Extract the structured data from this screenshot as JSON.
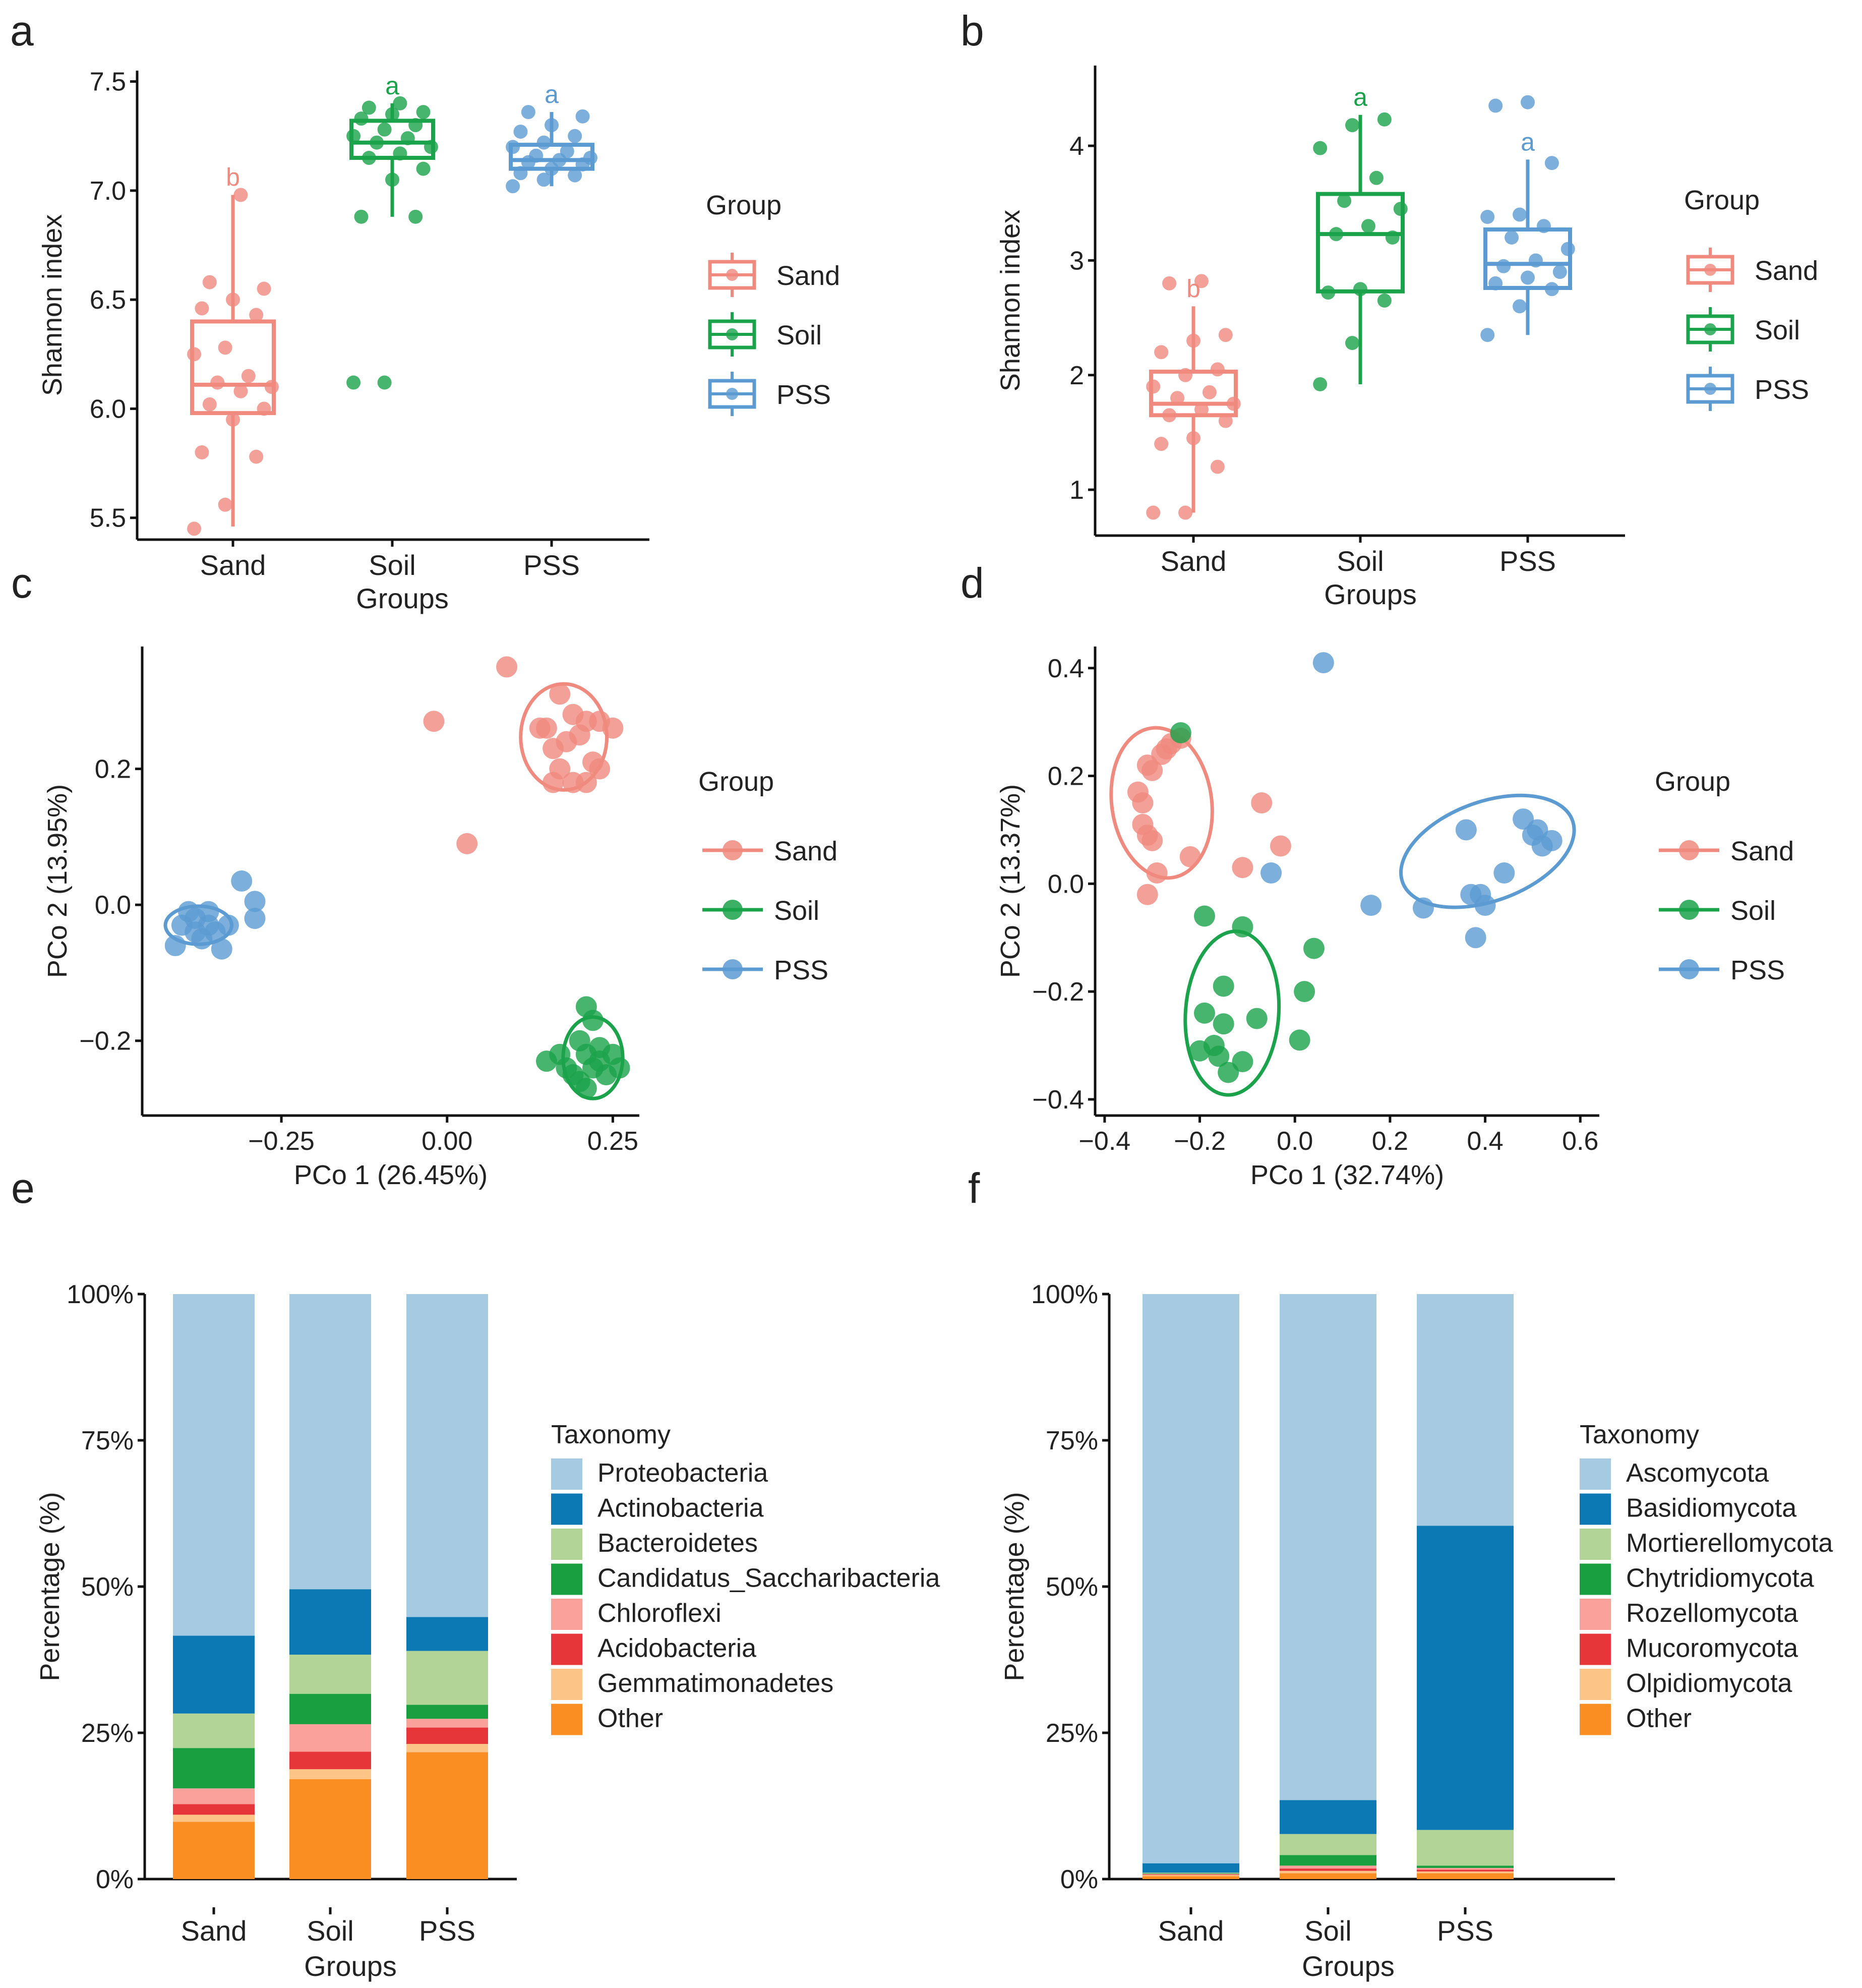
{
  "colors": {
    "Sand": "#F08A7E",
    "Soil": "#1AA34A",
    "PSS": "#5B9BD2"
  },
  "chart_data": [
    {
      "panel": "a",
      "type": "box",
      "xlabel": "Groups",
      "ylabel": "Shannon index",
      "categories": [
        "Sand",
        "Soil",
        "PSS"
      ],
      "yticks": [
        "5.5",
        "6.0",
        "6.5",
        "7.0",
        "7.5"
      ],
      "ylim": [
        5.4,
        7.55
      ],
      "letters": [
        "b",
        "a",
        "a"
      ],
      "legend": {
        "title": "Group",
        "entries": [
          "Sand",
          "Soil",
          "PSS"
        ]
      },
      "boxes": [
        {
          "q1": 5.98,
          "median": 6.11,
          "q3": 6.4,
          "low": 5.46,
          "high": 6.98
        },
        {
          "q1": 7.15,
          "median": 7.22,
          "q3": 7.32,
          "low": 6.88,
          "high": 7.4
        },
        {
          "q1": 7.1,
          "median": 7.14,
          "q3": 7.21,
          "low": 7.02,
          "high": 7.36
        }
      ],
      "points": [
        [
          5.45,
          5.56,
          5.78,
          5.8,
          5.95,
          6.0,
          6.02,
          6.08,
          6.1,
          6.12,
          6.15,
          6.25,
          6.28,
          6.43,
          6.46,
          6.5,
          6.55,
          6.58,
          6.98
        ],
        [
          6.12,
          6.12,
          6.88,
          6.88,
          7.05,
          7.1,
          7.15,
          7.17,
          7.2,
          7.22,
          7.24,
          7.25,
          7.28,
          7.3,
          7.33,
          7.35,
          7.36,
          7.38,
          7.4
        ],
        [
          7.02,
          7.05,
          7.07,
          7.08,
          7.1,
          7.12,
          7.13,
          7.14,
          7.15,
          7.16,
          7.18,
          7.2,
          7.22,
          7.25,
          7.27,
          7.3,
          7.34,
          7.36
        ]
      ]
    },
    {
      "panel": "b",
      "type": "box",
      "xlabel": "Groups",
      "ylabel": "Shannon index",
      "categories": [
        "Sand",
        "Soil",
        "PSS"
      ],
      "yticks": [
        "1",
        "2",
        "3",
        "4"
      ],
      "ylim": [
        0.6,
        4.7
      ],
      "letters": [
        "b",
        "a",
        "a"
      ],
      "legend": {
        "title": "Group",
        "entries": [
          "Sand",
          "Soil",
          "PSS"
        ]
      },
      "boxes": [
        {
          "q1": 1.65,
          "median": 1.75,
          "q3": 2.03,
          "low": 0.8,
          "high": 2.6
        },
        {
          "q1": 2.73,
          "median": 3.23,
          "q3": 3.58,
          "low": 1.92,
          "high": 4.27
        },
        {
          "q1": 2.76,
          "median": 2.97,
          "q3": 3.27,
          "low": 2.35,
          "high": 3.88
        }
      ],
      "points": [
        [
          0.8,
          0.8,
          1.2,
          1.4,
          1.45,
          1.6,
          1.65,
          1.7,
          1.75,
          1.8,
          1.85,
          1.9,
          2.0,
          2.05,
          2.2,
          2.3,
          2.35,
          2.8,
          2.82
        ],
        [
          1.92,
          2.28,
          2.65,
          2.72,
          2.75,
          3.2,
          3.23,
          3.3,
          3.45,
          3.52,
          3.72,
          3.98,
          4.18,
          4.23
        ],
        [
          2.35,
          2.6,
          2.75,
          2.8,
          2.85,
          2.9,
          2.95,
          3.0,
          3.1,
          3.2,
          3.3,
          3.38,
          3.4,
          3.85,
          4.35,
          4.38
        ]
      ]
    },
    {
      "panel": "c",
      "type": "scatter",
      "xlabel": "PCo 1 (26.45%)",
      "ylabel": "PCo 2 (13.95%)",
      "xlim": [
        -0.46,
        0.29
      ],
      "ylim": [
        -0.31,
        0.38
      ],
      "xticks": [
        "-0.25",
        "0.00",
        "0.25"
      ],
      "yticks": [
        "-0.2",
        "0.0",
        "0.2"
      ],
      "legend": {
        "title": "Group",
        "entries": [
          "Sand",
          "Soil",
          "PSS"
        ]
      },
      "series": [
        {
          "name": "Sand",
          "points": [
            [
              0.09,
              0.35
            ],
            [
              -0.02,
              0.27
            ],
            [
              0.03,
              0.09
            ],
            [
              0.17,
              0.31
            ],
            [
              0.19,
              0.28
            ],
            [
              0.15,
              0.26
            ],
            [
              0.21,
              0.27
            ],
            [
              0.16,
              0.23
            ],
            [
              0.18,
              0.24
            ],
            [
              0.2,
              0.25
            ],
            [
              0.23,
              0.27
            ],
            [
              0.25,
              0.26
            ],
            [
              0.22,
              0.21
            ],
            [
              0.17,
              0.2
            ],
            [
              0.19,
              0.18
            ],
            [
              0.21,
              0.18
            ],
            [
              0.23,
              0.2
            ],
            [
              0.16,
              0.18
            ],
            [
              0.14,
              0.26
            ]
          ],
          "ellipse": {
            "cx": 0.176,
            "cy": 0.247,
            "rx": 0.065,
            "ry": 0.078
          }
        },
        {
          "name": "Soil",
          "points": [
            [
              0.21,
              -0.15
            ],
            [
              0.22,
              -0.17
            ],
            [
              0.2,
              -0.2
            ],
            [
              0.23,
              -0.21
            ],
            [
              0.21,
              -0.22
            ],
            [
              0.15,
              -0.23
            ],
            [
              0.18,
              -0.24
            ],
            [
              0.25,
              -0.22
            ],
            [
              0.19,
              -0.25
            ],
            [
              0.22,
              -0.24
            ],
            [
              0.24,
              -0.25
            ],
            [
              0.21,
              -0.27
            ],
            [
              0.26,
              -0.24
            ],
            [
              0.17,
              -0.22
            ],
            [
              0.2,
              -0.26
            ],
            [
              0.23,
              -0.23
            ]
          ],
          "ellipse": {
            "cx": 0.22,
            "cy": -0.225,
            "rx": 0.045,
            "ry": 0.06
          }
        },
        {
          "name": "PSS",
          "points": [
            [
              -0.31,
              0.035
            ],
            [
              -0.29,
              0.005
            ],
            [
              -0.29,
              -0.02
            ],
            [
              -0.33,
              -0.03
            ],
            [
              -0.36,
              -0.01
            ],
            [
              -0.38,
              -0.02
            ],
            [
              -0.4,
              -0.03
            ],
            [
              -0.41,
              -0.06
            ],
            [
              -0.37,
              -0.05
            ],
            [
              -0.34,
              -0.065
            ],
            [
              -0.39,
              -0.01
            ],
            [
              -0.35,
              -0.04
            ],
            [
              -0.38,
              -0.04
            ],
            [
              -0.36,
              -0.03
            ]
          ],
          "ellipse": {
            "cx": -0.375,
            "cy": -0.03,
            "rx": 0.05,
            "ry": 0.028
          }
        }
      ]
    },
    {
      "panel": "d",
      "type": "scatter",
      "xlabel": "PCo 1 (32.74%)",
      "ylabel": "PCo 2 (13.37%)",
      "xlim": [
        -0.42,
        0.64
      ],
      "ylim": [
        -0.43,
        0.44
      ],
      "xticks": [
        "-0.4",
        "-0.2",
        "0.0",
        "0.2",
        "0.4",
        "0.6"
      ],
      "yticks": [
        "-0.4",
        "-0.2",
        "0.0",
        "0.2",
        "0.4"
      ],
      "legend": {
        "title": "Group",
        "entries": [
          "Sand",
          "Soil",
          "PSS"
        ]
      },
      "series": [
        {
          "name": "Sand",
          "points": [
            [
              -0.3,
              0.21
            ],
            [
              -0.28,
              0.24
            ],
            [
              -0.26,
              0.26
            ],
            [
              -0.24,
              0.27
            ],
            [
              -0.27,
              0.25
            ],
            [
              -0.31,
              0.22
            ],
            [
              -0.33,
              0.17
            ],
            [
              -0.32,
              0.15
            ],
            [
              -0.32,
              0.11
            ],
            [
              -0.31,
              0.09
            ],
            [
              -0.3,
              0.08
            ],
            [
              -0.29,
              0.02
            ],
            [
              -0.31,
              -0.02
            ],
            [
              -0.22,
              0.05
            ],
            [
              -0.11,
              0.03
            ],
            [
              -0.07,
              0.15
            ],
            [
              -0.03,
              0.07
            ]
          ],
          "ellipse": {
            "cx": -0.28,
            "cy": 0.15,
            "rx": 0.105,
            "ry": 0.14,
            "rotate": -8
          }
        },
        {
          "name": "Soil",
          "points": [
            [
              -0.24,
              0.28
            ],
            [
              -0.19,
              -0.06
            ],
            [
              -0.11,
              -0.08
            ],
            [
              0.04,
              -0.12
            ],
            [
              -0.15,
              -0.19
            ],
            [
              0.02,
              -0.2
            ],
            [
              -0.19,
              -0.24
            ],
            [
              -0.15,
              -0.26
            ],
            [
              -0.08,
              -0.25
            ],
            [
              0.01,
              -0.29
            ],
            [
              -0.17,
              -0.3
            ],
            [
              -0.2,
              -0.31
            ],
            [
              -0.16,
              -0.32
            ],
            [
              -0.11,
              -0.33
            ],
            [
              -0.14,
              -0.35
            ]
          ],
          "ellipse": {
            "cx": -0.132,
            "cy": -0.24,
            "rx": 0.098,
            "ry": 0.152,
            "rotate": 4
          }
        },
        {
          "name": "PSS",
          "points": [
            [
              0.06,
              0.41
            ],
            [
              -0.05,
              0.02
            ],
            [
              0.16,
              -0.04
            ],
            [
              0.27,
              -0.045
            ],
            [
              0.36,
              0.1
            ],
            [
              0.37,
              -0.02
            ],
            [
              0.38,
              -0.1
            ],
            [
              0.39,
              -0.02
            ],
            [
              0.4,
              -0.04
            ],
            [
              0.44,
              0.02
            ],
            [
              0.48,
              0.12
            ],
            [
              0.51,
              0.1
            ],
            [
              0.5,
              0.09
            ],
            [
              0.52,
              0.07
            ],
            [
              0.54,
              0.08
            ]
          ],
          "ellipse": {
            "cx": 0.405,
            "cy": 0.06,
            "rx": 0.19,
            "ry": 0.092,
            "rotate": -20
          }
        }
      ]
    },
    {
      "panel": "e",
      "type": "stacked_bar",
      "xlabel": "Groups",
      "ylabel": "Percentage (%)",
      "categories": [
        "Sand",
        "Soil",
        "PSS"
      ],
      "yticks": [
        "0%",
        "25%",
        "50%",
        "75%",
        "100%"
      ],
      "legend_title": "Taxonomy",
      "series": [
        {
          "name": "Proteobacteria",
          "color": "#A6CAE1",
          "values": [
            58.4,
            50.5,
            55.2
          ]
        },
        {
          "name": "Actinobacteria",
          "color": "#0C78B4",
          "values": [
            13.3,
            11.2,
            5.8
          ]
        },
        {
          "name": "Bacteroidetes",
          "color": "#B2D597",
          "values": [
            5.9,
            6.7,
            9.2
          ]
        },
        {
          "name": "Candidatus_Saccharibacteria",
          "color": "#199E40",
          "values": [
            6.9,
            5.2,
            2.4
          ]
        },
        {
          "name": "Chloroflexi",
          "color": "#F9A19A",
          "values": [
            2.7,
            4.7,
            1.5
          ]
        },
        {
          "name": "Acidobacteria",
          "color": "#E7363A",
          "values": [
            1.8,
            3.0,
            2.8
          ]
        },
        {
          "name": "Gemmatimonadetes",
          "color": "#FCC486",
          "values": [
            1.2,
            1.7,
            1.4
          ]
        },
        {
          "name": "Other",
          "color": "#FB8E23",
          "values": [
            9.8,
            17.1,
            21.7
          ]
        }
      ]
    },
    {
      "panel": "f",
      "type": "stacked_bar",
      "xlabel": "Groups",
      "ylabel": "Percentage (%)",
      "categories": [
        "Sand",
        "Soil",
        "PSS"
      ],
      "yticks": [
        "0%",
        "25%",
        "50%",
        "75%",
        "100%"
      ],
      "legend_title": "Taxonomy",
      "series": [
        {
          "name": "Ascomycota",
          "color": "#A6CAE1",
          "values": [
            97.3,
            86.5,
            39.6
          ]
        },
        {
          "name": "Basidiomycota",
          "color": "#0C78B4",
          "values": [
            1.6,
            5.8,
            52.0
          ]
        },
        {
          "name": "Mortierellomycota",
          "color": "#B2D597",
          "values": [
            0.1,
            3.6,
            6.1
          ]
        },
        {
          "name": "Chytridiomycota",
          "color": "#199E40",
          "values": [
            0.1,
            1.8,
            0.4
          ]
        },
        {
          "name": "Rozellomycota",
          "color": "#F9A19A",
          "values": [
            0.1,
            0.5,
            0.3
          ]
        },
        {
          "name": "Mucoromycota",
          "color": "#E7363A",
          "values": [
            0.1,
            0.4,
            0.3
          ]
        },
        {
          "name": "Olpidiomycota",
          "color": "#FCC486",
          "values": [
            0.2,
            0.4,
            0.3
          ]
        },
        {
          "name": "Other",
          "color": "#FB8E23",
          "values": [
            0.5,
            1.0,
            1.0
          ]
        }
      ]
    }
  ]
}
